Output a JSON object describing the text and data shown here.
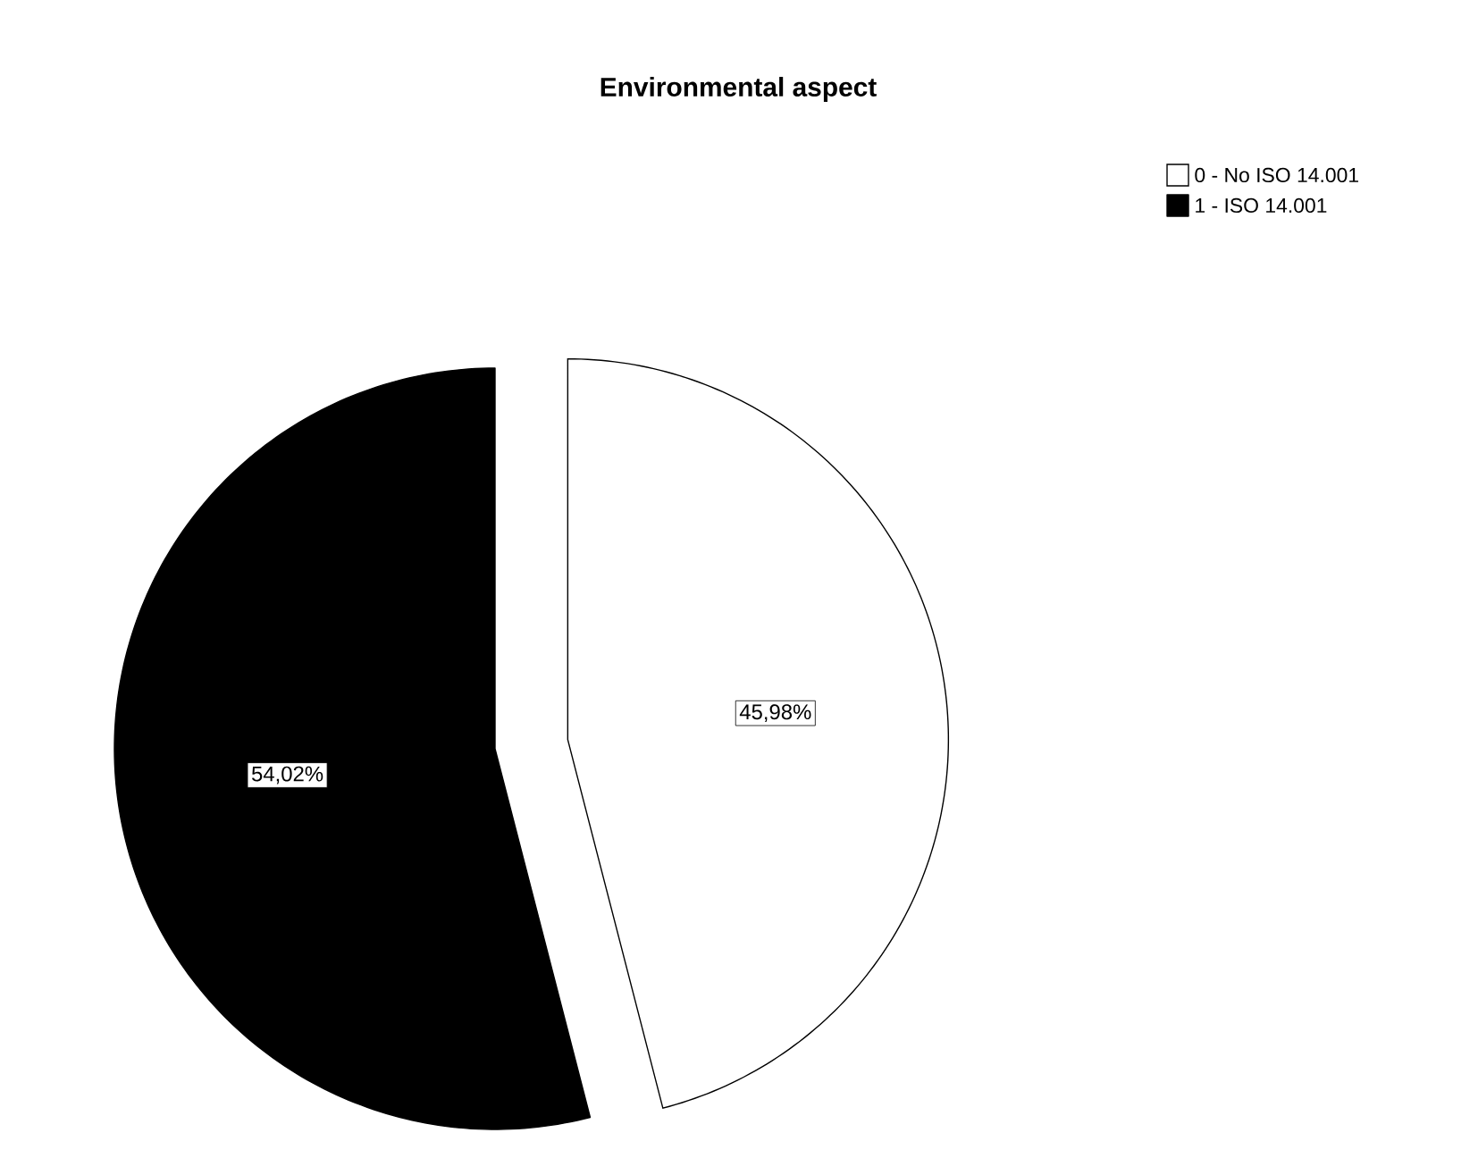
{
  "chart_data": {
    "type": "pie",
    "title": "Environmental aspect",
    "categories": [
      "0 - No ISO 14.001",
      "1 - ISO 14.001"
    ],
    "values": [
      45.98,
      54.02
    ],
    "colors": [
      "#ffffff",
      "#000000"
    ],
    "value_labels": [
      "45,98%",
      "54,02%"
    ],
    "legend": "top right"
  }
}
